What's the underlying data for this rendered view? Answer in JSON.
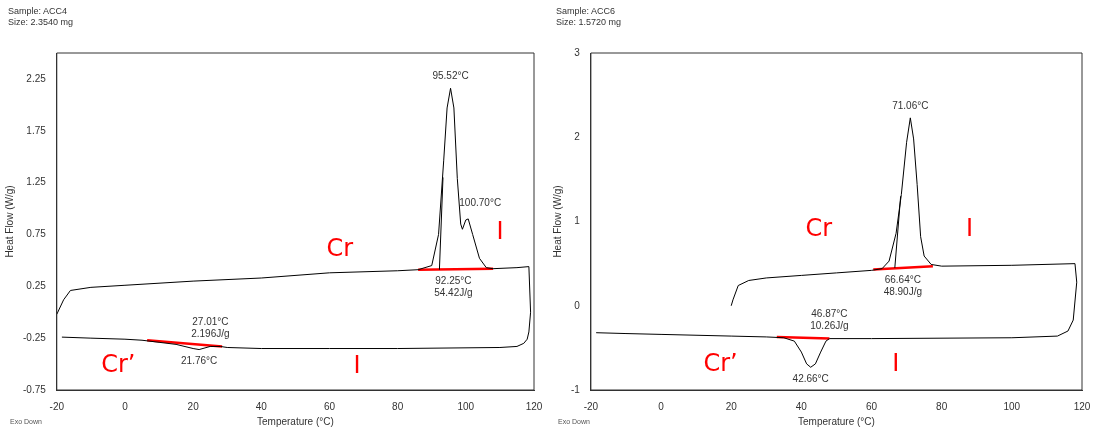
{
  "chart_data": [
    {
      "type": "line",
      "title": "Sample: ACC4",
      "subtitle": "Size:  2.3540 mg",
      "xlabel": "Temperature (°C)",
      "ylabel": "Heat Flow (W/g)",
      "xlim": [
        -20,
        120
      ],
      "xticks": [
        -20,
        0,
        20,
        40,
        60,
        80,
        100,
        120
      ],
      "ylim": [
        -0.75,
        2.5
      ],
      "yticks": [
        -0.75,
        -0.25,
        0.25,
        0.75,
        1.25,
        1.75,
        2.25
      ],
      "grid": false,
      "legend": false,
      "marker": "none",
      "line_style": "solid",
      "series": [
        {
          "color": "#000000",
          "x": [
            -20,
            -18,
            -16,
            -10,
            0,
            20,
            40,
            60,
            80,
            86,
            90,
            92,
            93.5,
            94.5,
            95.52,
            96.5,
            97.5,
            98.5,
            99,
            100,
            100.7,
            102,
            104,
            106,
            108,
            115,
            118.5
          ],
          "values": [
            -0.02,
            0.12,
            0.21,
            0.24,
            0.26,
            0.3,
            0.33,
            0.38,
            0.4,
            0.41,
            0.45,
            0.75,
            1.46,
            1.97,
            2.16,
            1.97,
            1.29,
            0.85,
            0.8,
            0.89,
            0.9,
            0.75,
            0.52,
            0.43,
            0.42,
            0.43,
            0.44
          ]
        },
        {
          "color": "#000000",
          "x": [
            118.5,
            119,
            118.5,
            118,
            117,
            115,
            110,
            80,
            60,
            40,
            30,
            28,
            25,
            21.76,
            20,
            15,
            10,
            5,
            0,
            -10,
            -18.5
          ],
          "values": [
            0.44,
            0.0,
            -0.19,
            -0.26,
            -0.3,
            -0.33,
            -0.34,
            -0.35,
            -0.35,
            -0.35,
            -0.34,
            -0.33,
            -0.33,
            -0.36,
            -0.35,
            -0.31,
            -0.29,
            -0.27,
            -0.26,
            -0.25,
            -0.24
          ]
        },
        {
          "color": "#ff0000",
          "x": [
            86,
            108
          ],
          "values": [
            0.41,
            0.42
          ]
        },
        {
          "color": "#ff0000",
          "x": [
            6.5,
            28.5
          ],
          "values": [
            -0.27,
            -0.33
          ]
        },
        {
          "color": "#000000",
          "x": [
            92.25,
            93.3
          ],
          "values": [
            0.41,
            1.3
          ]
        }
      ],
      "annotations": [
        {
          "text": "95.52°C",
          "x": 95.52,
          "y": 2.16
        },
        {
          "text": "100.70°C",
          "x": 100.7,
          "y": 0.9
        },
        {
          "text": "92.25°C",
          "x": 92.25,
          "y": 0.41
        },
        {
          "text": "54.42J/g",
          "x": 92.25,
          "y": 0.41
        },
        {
          "text": "27.01°C",
          "x": 28,
          "y": -0.33
        },
        {
          "text": "2.196J/g",
          "x": 28,
          "y": -0.33
        },
        {
          "text": "21.76°C",
          "x": 21.76,
          "y": -0.36
        },
        "Cr",
        "I",
        "Cr’",
        "I",
        "Exo Down"
      ]
    },
    {
      "type": "line",
      "title": "Sample: ACC6",
      "subtitle": "Size:  1.5720 mg",
      "xlabel": "Temperature (°C)",
      "ylabel": "Heat Flow (W/g)",
      "xlim": [
        -20,
        120
      ],
      "xticks": [
        -20,
        0,
        20,
        40,
        60,
        80,
        100,
        120
      ],
      "ylim": [
        -1,
        3
      ],
      "yticks": [
        -1,
        0,
        1,
        2,
        3
      ],
      "grid": false,
      "legend": false,
      "marker": "none",
      "line_style": "solid",
      "series": [
        {
          "color": "#000000",
          "x": [
            20,
            20.5,
            22,
            25,
            30,
            40,
            50,
            60,
            63,
            65,
            67,
            68.5,
            70,
            71.06,
            72,
            73,
            74,
            75,
            77,
            80,
            100,
            118
          ],
          "values": [
            0.0,
            0.07,
            0.24,
            0.3,
            0.33,
            0.36,
            0.39,
            0.42,
            0.44,
            0.53,
            0.86,
            1.32,
            1.94,
            2.23,
            1.98,
            1.44,
            0.82,
            0.59,
            0.49,
            0.47,
            0.48,
            0.5
          ]
        },
        {
          "color": "#000000",
          "x": [
            118,
            118.5,
            117.5,
            116,
            113,
            100,
            60,
            48,
            47,
            45.5,
            44,
            42.66,
            41.5,
            40,
            38,
            35,
            30,
            20,
            0,
            -10,
            -18.5
          ],
          "values": [
            0.5,
            0.28,
            -0.17,
            -0.3,
            -0.36,
            -0.38,
            -0.39,
            -0.39,
            -0.42,
            -0.55,
            -0.69,
            -0.73,
            -0.69,
            -0.55,
            -0.42,
            -0.38,
            -0.37,
            -0.36,
            -0.34,
            -0.33,
            -0.32
          ]
        },
        {
          "color": "#ff0000",
          "x": [
            60.5,
            77.5
          ],
          "values": [
            0.43,
            0.47
          ]
        },
        {
          "color": "#ff0000",
          "x": [
            33,
            48
          ],
          "values": [
            -0.37,
            -0.39
          ]
        },
        {
          "color": "#000000",
          "x": [
            66.64,
            68.3
          ],
          "values": [
            0.45,
            1.3
          ]
        }
      ],
      "annotations": [
        {
          "text": "71.06°C",
          "x": 71.06,
          "y": 2.23
        },
        {
          "text": "66.64°C",
          "x": 66.64,
          "y": 0.45
        },
        {
          "text": "48.90J/g",
          "x": 66.64,
          "y": 0.45
        },
        {
          "text": "46.87°C",
          "x": 48,
          "y": -0.39
        },
        {
          "text": "10.26J/g",
          "x": 48,
          "y": -0.39
        },
        {
          "text": "42.66°C",
          "x": 42.66,
          "y": -0.73
        },
        "Cr",
        "I",
        "Cr’",
        "I",
        "Exo Down"
      ]
    }
  ]
}
